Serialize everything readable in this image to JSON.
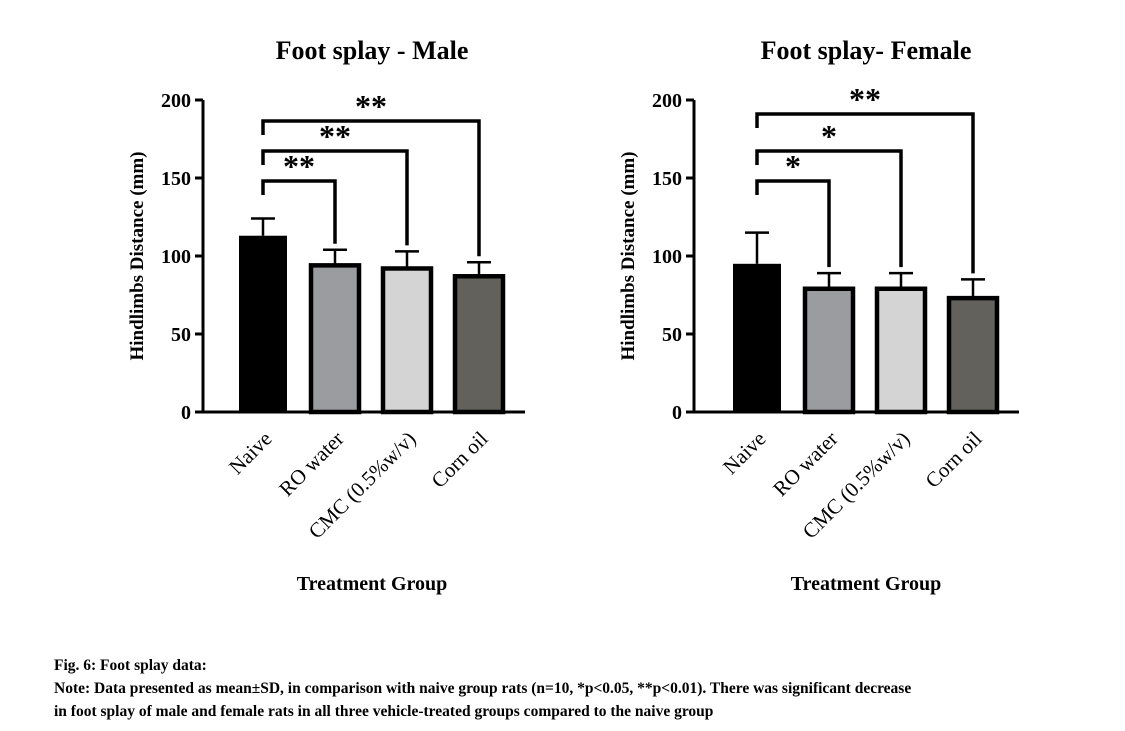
{
  "chart_data": [
    {
      "type": "bar",
      "title": "Foot splay - Male",
      "xlabel": "Treatment Group",
      "ylabel": "Hindlimbs Distance (mm)",
      "ylim": [
        0,
        200
      ],
      "yticks": [
        0,
        50,
        100,
        150,
        200
      ],
      "categories": [
        "Naive",
        "RO water",
        "CMC (0.5%w/v)",
        "Corn oil"
      ],
      "values": [
        113,
        94,
        92,
        87
      ],
      "errors": [
        11,
        10,
        11,
        9
      ],
      "colors": [
        "#000000",
        "#9b9ca0",
        "#d4d4d4",
        "#62615c"
      ],
      "significance": [
        {
          "from": "Naive",
          "to": "RO water",
          "label": "**"
        },
        {
          "from": "Naive",
          "to": "CMC (0.5%w/v)",
          "label": "**"
        },
        {
          "from": "Naive",
          "to": "Corn oil",
          "label": "**"
        }
      ]
    },
    {
      "type": "bar",
      "title": "Foot splay- Female",
      "xlabel": "Treatment Group",
      "ylabel": "Hindlimbs Distance (mm)",
      "ylim": [
        0,
        200
      ],
      "yticks": [
        0,
        50,
        100,
        150,
        200
      ],
      "categories": [
        "Naive",
        "RO water",
        "CMC (0.5%w/v)",
        "Corn oil"
      ],
      "values": [
        95,
        79,
        79,
        73
      ],
      "errors": [
        20,
        10,
        10,
        12
      ],
      "colors": [
        "#000000",
        "#9b9ca0",
        "#d4d4d4",
        "#62615c"
      ],
      "significance": [
        {
          "from": "Naive",
          "to": "RO water",
          "label": "*"
        },
        {
          "from": "Naive",
          "to": "CMC (0.5%w/v)",
          "label": "*"
        },
        {
          "from": "Naive",
          "to": "Corn oil",
          "label": "**"
        }
      ]
    }
  ],
  "caption": {
    "title": "Fig. 6: Foot splay data:",
    "note_line1": "Note: Data presented as mean±SD, in comparison with naive group rats (n=10, *p<0.05, **p<0.01). There was significant decrease",
    "note_line2": "in foot splay of male and female rats in all three vehicle-treated groups compared to the naive group"
  }
}
